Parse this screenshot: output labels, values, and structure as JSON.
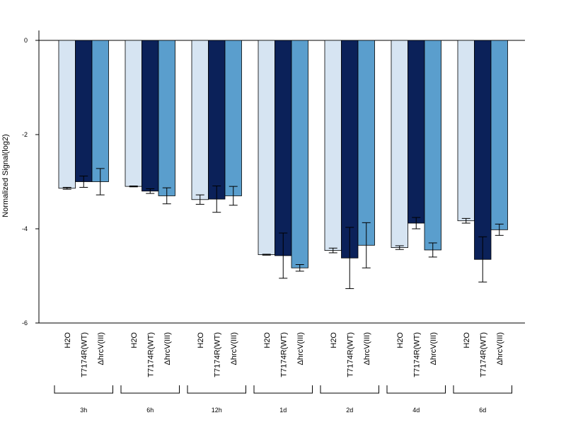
{
  "chart_data": {
    "type": "bar",
    "title": "",
    "xlabel": "",
    "ylabel": "Normalized Signal(log2)",
    "ylim": [
      -6,
      0
    ],
    "yticks": [
      "0",
      "-2",
      "-4",
      "-6"
    ],
    "groups": [
      "3h",
      "6h",
      "12h",
      "1d",
      "2d",
      "4d",
      "6d"
    ],
    "conditions": [
      "H2O",
      "T7174R(WT)",
      "ΔhrcV(III)"
    ],
    "colors": [
      "#d6e4f2",
      "#0b2159",
      "#5a9ecd"
    ],
    "series": [
      {
        "values": [
          -3.14,
          -3.1,
          -3.38,
          -4.55,
          -4.46,
          -4.4,
          -3.83
        ],
        "errors": [
          0.02,
          0.01,
          0.1,
          0.01,
          0.05,
          0.04,
          0.05
        ]
      },
      {
        "values": [
          -3.0,
          -3.2,
          -3.37,
          -4.57,
          -4.62,
          -3.88,
          -4.65
        ],
        "errors": [
          0.12,
          0.05,
          0.28,
          0.48,
          0.65,
          0.12,
          0.48
        ]
      },
      {
        "values": [
          -3.0,
          -3.3,
          -3.3,
          -4.83,
          -4.35,
          -4.45,
          -4.02
        ],
        "errors": [
          0.28,
          0.17,
          0.2,
          0.07,
          0.48,
          0.15,
          0.12
        ]
      }
    ],
    "grid": false,
    "legend": "none"
  }
}
